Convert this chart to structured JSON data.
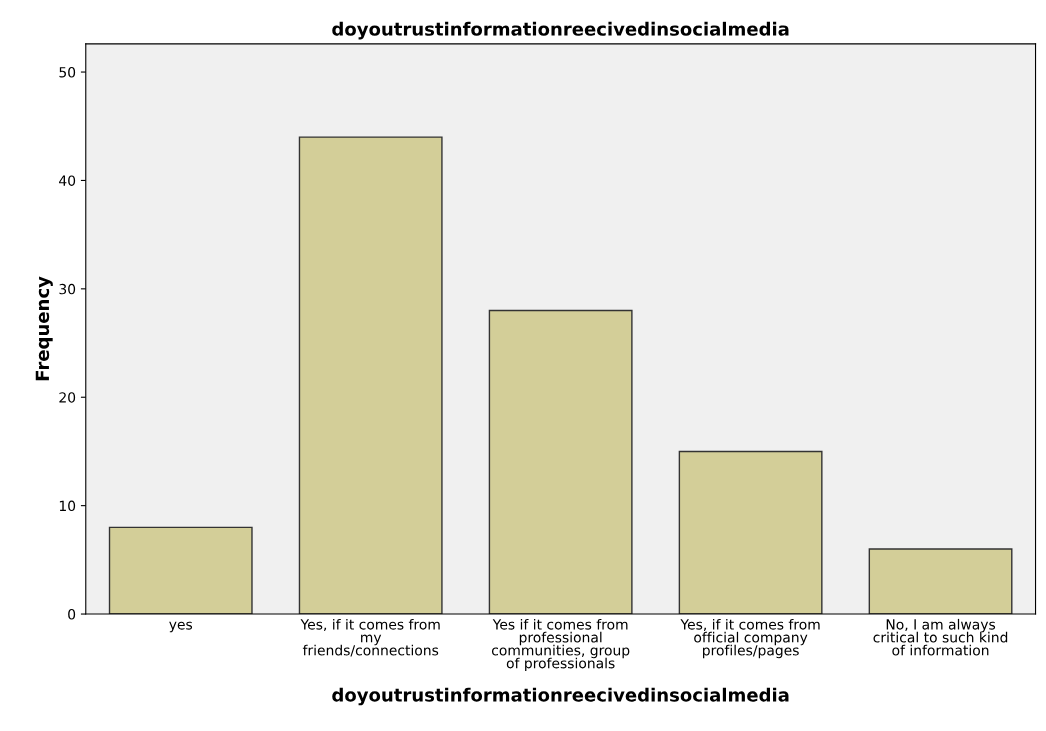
{
  "chart_data": {
    "type": "bar",
    "title": "doyoutrustinformationreecivedinsocialmedia",
    "xlabel": "doyoutrustinformationreecivedinsocialmedia",
    "ylabel": "Frequency",
    "categories": [
      "yes",
      "Yes, if it comes from\nmy\nfriends/connections",
      "Yes if it comes from\nprofessional\ncommunities, group\nof professionals",
      "Yes, if it comes from\nofficial company\nprofiles/pages",
      "No, I am always\ncritical to such kind\nof information"
    ],
    "values": [
      8,
      44,
      28,
      15,
      6
    ],
    "color": "#d3ce98",
    "ylim": [
      0,
      52.6
    ],
    "yticks": [
      0,
      10,
      20,
      30,
      40,
      50
    ],
    "grid": false
  }
}
